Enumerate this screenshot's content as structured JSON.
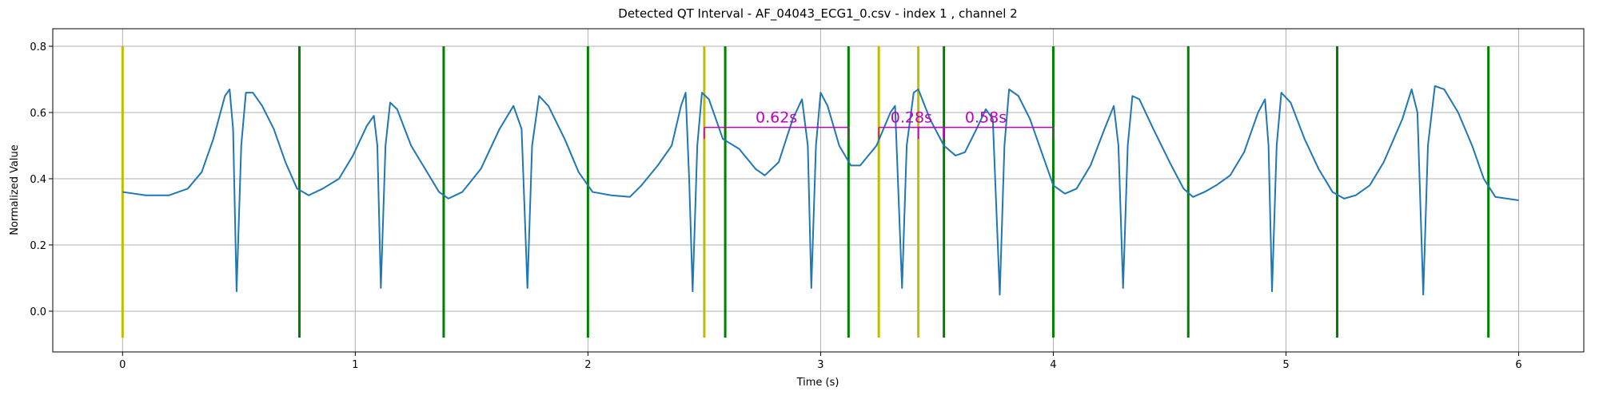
{
  "chart_data": {
    "type": "line",
    "title": "Detected QT Interval - AF_04043_ECG1_0.csv - index 1 , channel 2",
    "xlabel": "Time (s)",
    "ylabel": "Normalized Value",
    "xlim": [
      -0.3,
      6.28
    ],
    "ylim": [
      -0.123,
      0.853
    ],
    "xticks": [
      0,
      1,
      2,
      3,
      4,
      5,
      6
    ],
    "yticks": [
      {
        "value": 0,
        "label": "0.0"
      },
      0.2,
      0.4,
      0.6,
      0.8
    ],
    "grid": true,
    "series": [
      {
        "color": "#1f77b4",
        "x": [
          0,
          0.1,
          0.2,
          0.28,
          0.34,
          0.39,
          0.44,
          0.46,
          0.475,
          0.49,
          0.51,
          0.53,
          0.56,
          0.6,
          0.65,
          0.7,
          0.75,
          0.8,
          0.86,
          0.93,
          0.99,
          1.05,
          1.08,
          1.095,
          1.11,
          1.13,
          1.15,
          1.18,
          1.24,
          1.3,
          1.36,
          1.4,
          1.46,
          1.54,
          1.62,
          1.68,
          1.715,
          1.74,
          1.76,
          1.79,
          1.83,
          1.9,
          1.96,
          2.02,
          2.1,
          2.18,
          2.23,
          2.3,
          2.36,
          2.4,
          2.42,
          2.435,
          2.45,
          2.47,
          2.49,
          2.52,
          2.58,
          2.65,
          2.72,
          2.76,
          2.82,
          2.88,
          2.92,
          2.945,
          2.96,
          2.98,
          3.0,
          3.03,
          3.08,
          3.13,
          3.17,
          3.24,
          3.3,
          3.32,
          3.35,
          3.37,
          3.4,
          3.42,
          3.47,
          3.53,
          3.58,
          3.62,
          3.67,
          3.71,
          3.74,
          3.77,
          3.79,
          3.81,
          3.85,
          3.9,
          3.95,
          4.0,
          4.05,
          4.1,
          4.16,
          4.22,
          4.26,
          4.28,
          4.3,
          4.32,
          4.34,
          4.37,
          4.43,
          4.5,
          4.56,
          4.6,
          4.65,
          4.7,
          4.76,
          4.82,
          4.88,
          4.91,
          4.925,
          4.94,
          4.96,
          4.98,
          5.02,
          5.08,
          5.14,
          5.2,
          5.25,
          5.3,
          5.36,
          5.42,
          5.5,
          5.54,
          5.565,
          5.59,
          5.61,
          5.64,
          5.68,
          5.74,
          5.8,
          5.85,
          5.9,
          5.95,
          6.0
        ],
        "values": [
          0.36,
          0.35,
          0.35,
          0.37,
          0.42,
          0.52,
          0.65,
          0.67,
          0.55,
          0.06,
          0.5,
          0.66,
          0.66,
          0.62,
          0.55,
          0.45,
          0.37,
          0.35,
          0.37,
          0.4,
          0.47,
          0.56,
          0.59,
          0.5,
          0.07,
          0.5,
          0.63,
          0.61,
          0.5,
          0.43,
          0.36,
          0.34,
          0.36,
          0.43,
          0.55,
          0.62,
          0.55,
          0.07,
          0.5,
          0.65,
          0.62,
          0.52,
          0.42,
          0.36,
          0.35,
          0.345,
          0.38,
          0.44,
          0.5,
          0.62,
          0.66,
          0.4,
          0.06,
          0.5,
          0.66,
          0.64,
          0.52,
          0.49,
          0.43,
          0.41,
          0.45,
          0.58,
          0.64,
          0.5,
          0.07,
          0.5,
          0.66,
          0.62,
          0.5,
          0.44,
          0.44,
          0.5,
          0.6,
          0.62,
          0.07,
          0.5,
          0.66,
          0.67,
          0.58,
          0.5,
          0.47,
          0.48,
          0.55,
          0.61,
          0.58,
          0.05,
          0.5,
          0.67,
          0.65,
          0.58,
          0.48,
          0.38,
          0.355,
          0.37,
          0.44,
          0.55,
          0.62,
          0.5,
          0.07,
          0.5,
          0.65,
          0.64,
          0.55,
          0.45,
          0.37,
          0.345,
          0.36,
          0.38,
          0.41,
          0.48,
          0.6,
          0.64,
          0.5,
          0.06,
          0.5,
          0.66,
          0.63,
          0.52,
          0.43,
          0.36,
          0.34,
          0.35,
          0.38,
          0.45,
          0.58,
          0.67,
          0.6,
          0.05,
          0.5,
          0.68,
          0.67,
          0.6,
          0.5,
          0.4,
          0.345,
          0.34,
          0.335
        ]
      }
    ],
    "vline_span": [
      -0.08,
      0.8
    ],
    "vlines": [
      {
        "x": 0,
        "color": "#bfbf00"
      },
      {
        "x": 0.76,
        "color": "#008000"
      },
      {
        "x": 1.38,
        "color": "#008000"
      },
      {
        "x": 2.0,
        "color": "#008000"
      },
      {
        "x": 2.5,
        "color": "#bfbf00"
      },
      {
        "x": 2.59,
        "color": "#008000"
      },
      {
        "x": 3.12,
        "color": "#008000"
      },
      {
        "x": 3.25,
        "color": "#bfbf00"
      },
      {
        "x": 3.42,
        "color": "#bfbf00"
      },
      {
        "x": 3.53,
        "color": "#008000"
      },
      {
        "x": 4.0,
        "color": "#008000"
      },
      {
        "x": 4.58,
        "color": "#008000"
      },
      {
        "x": 5.22,
        "color": "#008000"
      },
      {
        "x": 5.87,
        "color": "#008000"
      }
    ],
    "bracket_color": "#bf00bf",
    "bracket_tick": 0.52,
    "brackets": [
      {
        "x1": 2.5,
        "x2": 3.12,
        "y": 0.555,
        "label": "0.62s"
      },
      {
        "x1": 3.25,
        "x2": 3.53,
        "y": 0.555,
        "label": "0.28s"
      },
      {
        "x1": 3.42,
        "x2": 4.0,
        "y": 0.555,
        "label": "0.58s"
      }
    ]
  }
}
